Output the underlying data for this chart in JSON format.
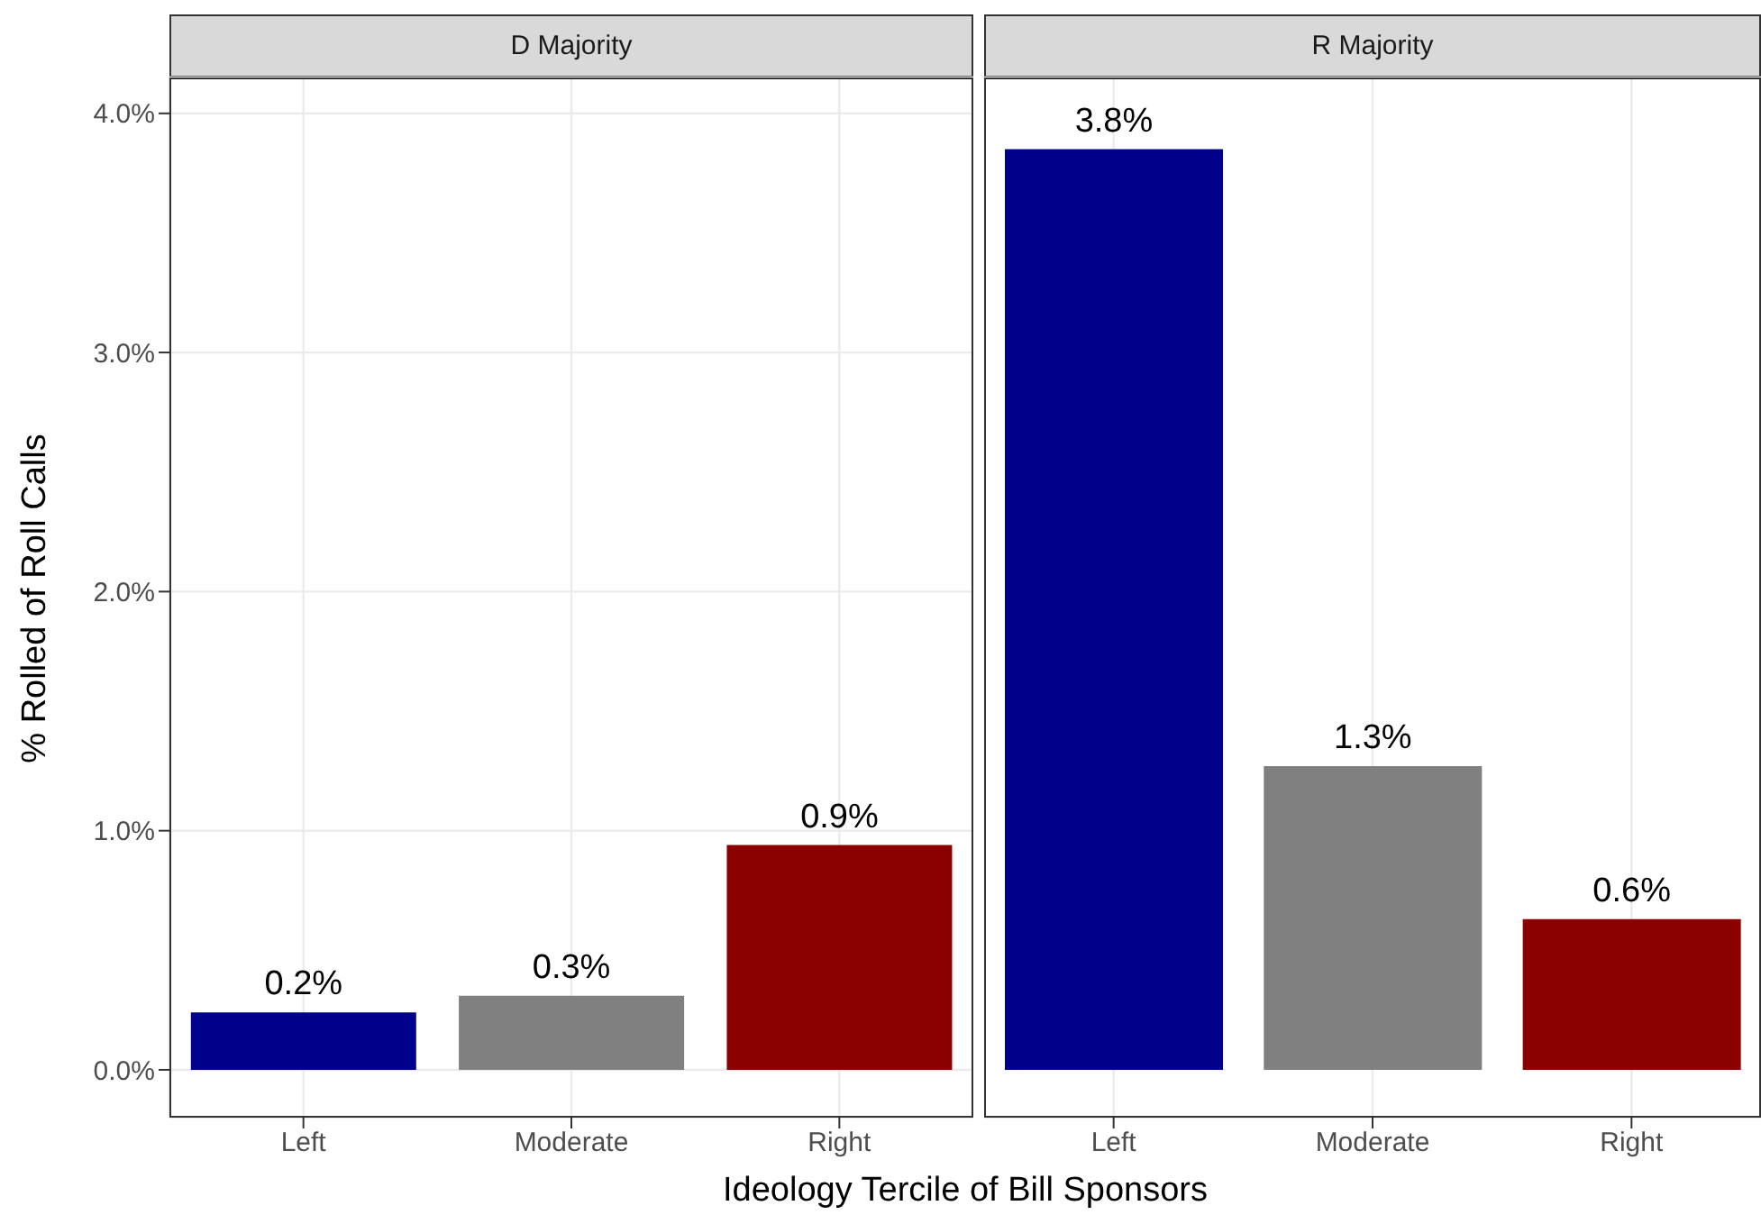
{
  "chart_data": [
    {
      "type": "bar",
      "title": "D Majority",
      "xlabel": "Ideology Tercile of Bill Sponsors",
      "ylabel": "% Rolled of Roll Calls",
      "categories": [
        "Left",
        "Moderate",
        "Right"
      ],
      "values": [
        0.24,
        0.31,
        0.94
      ],
      "colors": [
        "#00008b",
        "#808080",
        "#8b0000"
      ],
      "value_labels": [
        "0.2%",
        "0.3%",
        "0.9%"
      ],
      "ylim": [
        -0.2,
        4.15
      ],
      "yticks": [
        {
          "value": 0,
          "label": "0.0%"
        },
        {
          "value": 1,
          "label": "1.0%"
        },
        {
          "value": 2,
          "label": "2.0%"
        },
        {
          "value": 3,
          "label": "3.0%"
        },
        {
          "value": 4,
          "label": "4.0%"
        }
      ],
      "grid": true
    },
    {
      "type": "bar",
      "title": "R Majority",
      "categories": [
        "Left",
        "Moderate",
        "Right"
      ],
      "values": [
        3.85,
        1.27,
        0.63
      ],
      "colors": [
        "#00008b",
        "#808080",
        "#8b0000"
      ],
      "value_labels": [
        "3.8%",
        "1.3%",
        "0.6%"
      ],
      "ylim": [
        -0.2,
        4.15
      ],
      "yticks": [
        {
          "value": 0,
          "label": null
        },
        {
          "value": 1,
          "label": null
        },
        {
          "value": 2,
          "label": null
        },
        {
          "value": 3,
          "label": null
        },
        {
          "value": 4,
          "label": null
        }
      ],
      "grid": true,
      "tick_labels": "x"
    }
  ]
}
